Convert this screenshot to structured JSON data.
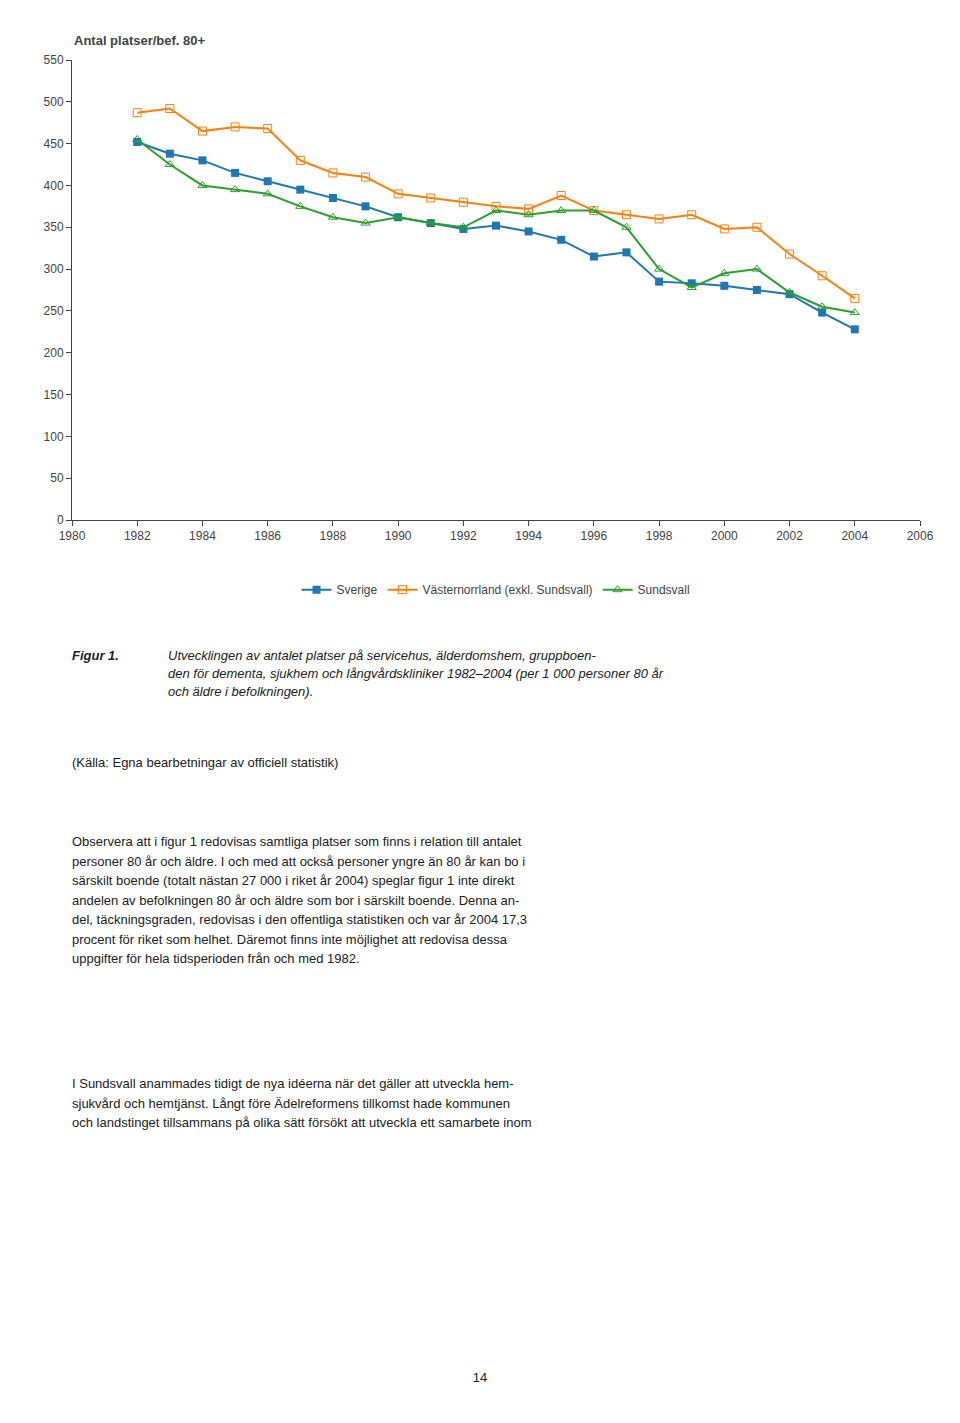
{
  "chart_data": {
    "type": "line",
    "ylabel": "Antal platser/bef. 80+",
    "x": [
      1982,
      1983,
      1984,
      1985,
      1986,
      1987,
      1988,
      1989,
      1990,
      1991,
      1992,
      1993,
      1994,
      1995,
      1996,
      1997,
      1998,
      1999,
      2000,
      2001,
      2002,
      2003,
      2004
    ],
    "series": [
      {
        "name": "Sverige",
        "marker": "square",
        "values": [
          452,
          438,
          430,
          415,
          405,
          395,
          385,
          375,
          362,
          355,
          348,
          352,
          345,
          335,
          315,
          320,
          285,
          283,
          280,
          275,
          270,
          248,
          228
        ]
      },
      {
        "name": "Västernorrland (exkl. Sundsvall)",
        "marker": "square-open",
        "values": [
          487,
          492,
          465,
          470,
          468,
          430,
          415,
          410,
          390,
          385,
          380,
          375,
          372,
          388,
          370,
          365,
          360,
          365,
          348,
          350,
          318,
          292,
          265
        ]
      },
      {
        "name": "Sundsvall",
        "marker": "triangle-up-open",
        "values": [
          455,
          425,
          400,
          395,
          390,
          375,
          362,
          355,
          362,
          355,
          350,
          370,
          365,
          370,
          370,
          350,
          300,
          278,
          295,
          300,
          272,
          255,
          248
        ]
      }
    ],
    "xlim": [
      1980,
      2006
    ],
    "xticks": [
      1980,
      1982,
      1984,
      1986,
      1988,
      1990,
      1992,
      1994,
      1996,
      1998,
      2000,
      2002,
      2004,
      2006
    ],
    "ylim": [
      0,
      550
    ],
    "yticks": [
      0,
      50,
      100,
      150,
      200,
      250,
      300,
      350,
      400,
      450,
      500,
      550
    ],
    "grid": false,
    "legend": "bottom",
    "annotations": [
      "Figur 1.",
      "Utvecklingen av antalet platser på servicehus, älderdomshem, gruppboen-\nden för dementa, sjukhem och långvårdskliniker 1982–2004 (per 1 000 personer 80 år\noch äldre i befolkningen).",
      "(Källa: Egna bearbetningar av officiell statistik)",
      "Observera att i figur 1 redovisas samtliga platser som finns i relation till antalet\npersoner 80 år och äldre. I och med att också personer yngre än 80 år kan bo i\nsärskilt boende (totalt nästan 27 000 i riket år 2004) speglar figur 1 inte direkt\nandelen av befolkningen 80 år och äldre som bor i särskilt boende. Denna an-\ndel, täckningsgraden, redovisas i den offentliga statistiken och var år 2004 17,3\nprocent för riket som helhet. Däremot finns inte möjlighet att redovisa dessa\nuppgifter för hela tidsperioden från och med 1982.",
      "I Sundsvall anammades tidigt de nya idéerna när det gäller att utveckla hem-\nsjukvård och hemtjänst. Långt före Ädelreformens tillkomst hade kommunen\noch landstinget tillsammans på olika sätt försökt att utveckla ett samarbete inom",
      "14"
    ]
  }
}
